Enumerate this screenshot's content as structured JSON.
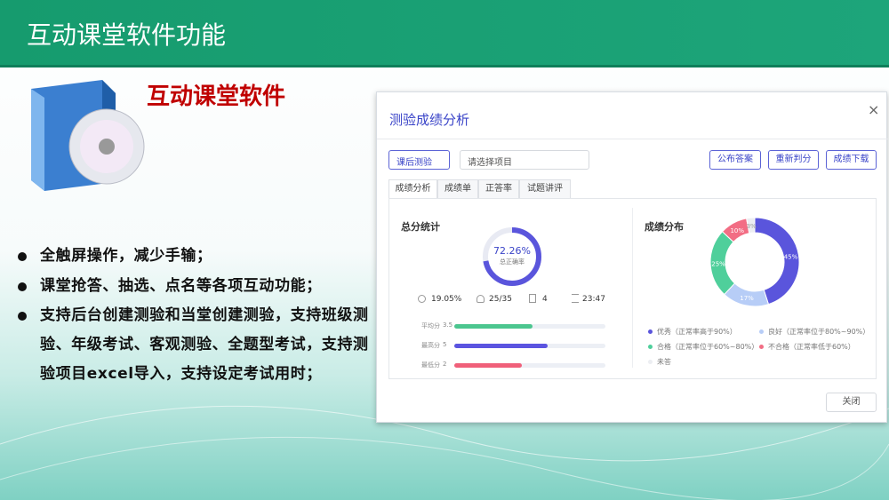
{
  "header": {
    "title": "互动课堂软件功能"
  },
  "product": {
    "title": "互动课堂软件"
  },
  "bullets": [
    "全触屏操作，减少手输；",
    "课堂抢答、抽选、点名等各项互动功能；",
    "支持后台创建测验和当堂创建测验，支持班级测验、年级考试、客观测验、全题型考试，支持测验项目excel导入，支持设定考试用时；"
  ],
  "dialog": {
    "title": "测验成绩分析",
    "close_icon": "×",
    "filters": {
      "type": "课后测验",
      "project": "请选择项目"
    },
    "buttons": [
      "公布答案",
      "重新判分",
      "成绩下载"
    ],
    "tabs": [
      "成绩分析",
      "成绩单",
      "正答率",
      "试题讲评"
    ],
    "summary": {
      "title": "总分统计",
      "accuracy": {
        "value": 72.26,
        "label": "72.26%"
      },
      "accuracy_caption": "总正确率",
      "stats": [
        "19.05%",
        "25/35",
        "4",
        "23:47"
      ],
      "scores": [
        {
          "label": "平均分",
          "value": 3.5,
          "color": "#4cc68f"
        },
        {
          "label": "最高分",
          "value": 5,
          "color": "#5b54e0"
        },
        {
          "label": "最低分",
          "value": 2,
          "color": "#f0607a"
        }
      ]
    },
    "distribution": {
      "title": "成绩分布",
      "segments": [
        {
          "name": "优秀（正常率高于90%）",
          "value": 45,
          "value_label": "45%",
          "color": "#5a55dc"
        },
        {
          "name": "良好（正常率位于80%~90%）",
          "value": 17,
          "value_label": "17%",
          "color": "#b7cdf7"
        },
        {
          "name": "合格（正常率位于60%~80%）",
          "value": 25,
          "value_label": "25%",
          "color": "#4fcf9b"
        },
        {
          "name": "不合格（正常率低于60%）",
          "value": 10,
          "value_label": "10%",
          "color": "#f26d84"
        },
        {
          "name": "未答",
          "value": 3,
          "value_label": "3%",
          "color": "#eceef2"
        }
      ]
    },
    "close_button": "关闭"
  }
}
